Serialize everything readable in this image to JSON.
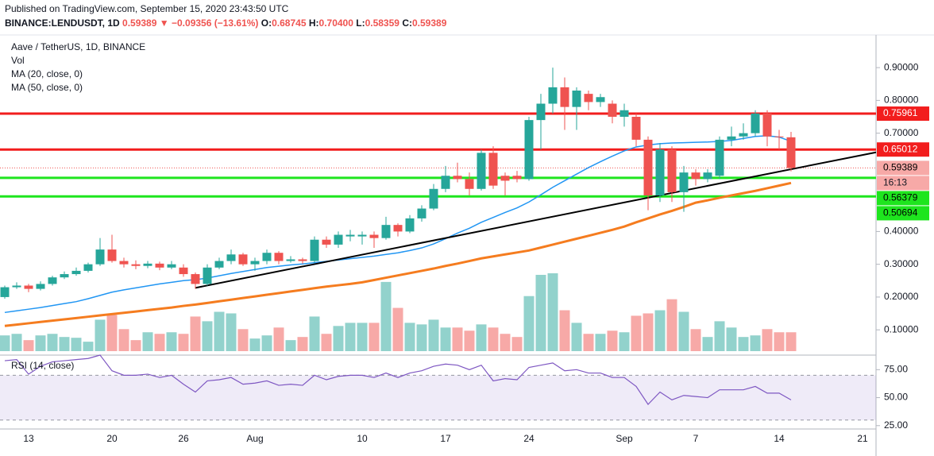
{
  "header": {
    "published": "Published on TradingView.com, September 15, 2020 23:43:50 UTC",
    "symbol": "BINANCE:LENDUSDT, 1D",
    "last": "0.59389",
    "arrow": "▼",
    "change": "−0.09356 (−13.61%)",
    "ohlc": [
      {
        "label": "O:",
        "value": "0.68745"
      },
      {
        "label": "H:",
        "value": "0.70400"
      },
      {
        "label": "L:",
        "value": "0.58359"
      },
      {
        "label": "C:",
        "value": "0.59389"
      }
    ]
  },
  "chart_data": {
    "type": "candlestick",
    "title": "Aave / TetherUS, 1D, BINANCE",
    "categories": [
      null,
      null,
      "13",
      null,
      null,
      null,
      null,
      null,
      null,
      "20",
      null,
      null,
      null,
      null,
      null,
      "26",
      null,
      null,
      null,
      null,
      null,
      "Aug",
      null,
      null,
      null,
      null,
      null,
      null,
      null,
      null,
      "10",
      null,
      null,
      null,
      null,
      null,
      null,
      "17",
      null,
      null,
      null,
      null,
      null,
      null,
      "24",
      null,
      null,
      null,
      null,
      null,
      null,
      null,
      "Sep",
      null,
      null,
      null,
      null,
      null,
      "7",
      null,
      null,
      null,
      null,
      null,
      null,
      "14",
      null,
      null,
      null,
      null,
      null,
      null,
      "21",
      null
    ],
    "open": [
      0.2,
      0.23,
      0.235,
      0.225,
      0.24,
      0.26,
      0.27,
      0.28,
      0.3,
      0.345,
      0.31,
      0.3,
      0.295,
      0.302,
      0.29,
      0.29,
      0.27,
      0.24,
      0.29,
      0.31,
      0.33,
      0.3,
      0.31,
      0.335,
      0.31,
      0.315,
      0.31,
      0.375,
      0.36,
      0.385,
      0.385,
      0.39,
      0.38,
      0.42,
      0.4,
      0.44,
      0.47,
      0.53,
      0.57,
      0.56,
      0.53,
      0.64,
      0.57,
      0.57,
      0.56,
      0.74,
      0.79,
      0.84,
      0.78,
      0.82,
      0.795,
      0.79,
      0.75,
      0.75,
      0.68,
      0.51,
      0.65,
      0.52,
      0.58,
      0.56,
      0.57,
      0.68,
      0.69,
      0.7,
      0.76,
      0.69,
      0.68745,
      null,
      null,
      null,
      null,
      null,
      null,
      null
    ],
    "high": [
      0.235,
      0.245,
      0.24,
      0.248,
      0.265,
      0.278,
      0.29,
      0.305,
      0.38,
      0.39,
      0.32,
      0.312,
      0.31,
      0.308,
      0.31,
      0.3,
      0.275,
      0.3,
      0.32,
      0.345,
      0.335,
      0.32,
      0.345,
      0.34,
      0.325,
      0.32,
      0.385,
      0.385,
      0.4,
      0.405,
      0.4,
      0.4,
      0.445,
      0.425,
      0.45,
      0.48,
      0.545,
      0.6,
      0.61,
      0.58,
      0.65,
      0.66,
      0.58,
      0.585,
      0.75,
      0.82,
      0.9,
      0.87,
      0.84,
      0.83,
      0.82,
      0.8,
      0.79,
      0.76,
      0.69,
      0.67,
      0.66,
      0.6,
      0.59,
      0.59,
      0.69,
      0.72,
      0.73,
      0.77,
      0.77,
      0.71,
      0.704,
      null,
      null,
      null,
      null,
      null,
      null,
      null
    ],
    "low": [
      0.195,
      0.225,
      0.215,
      0.22,
      0.235,
      0.255,
      0.265,
      0.275,
      0.295,
      0.305,
      0.29,
      0.285,
      0.288,
      0.282,
      0.285,
      0.262,
      0.225,
      0.235,
      0.285,
      0.3,
      0.295,
      0.28,
      0.3,
      0.3,
      0.305,
      0.302,
      0.305,
      0.35,
      0.35,
      0.37,
      0.36,
      0.35,
      0.375,
      0.385,
      0.395,
      0.43,
      0.465,
      0.52,
      0.55,
      0.51,
      0.525,
      0.53,
      0.51,
      0.55,
      0.555,
      0.65,
      0.76,
      0.71,
      0.71,
      0.77,
      0.78,
      0.73,
      0.72,
      0.66,
      0.465,
      0.49,
      0.49,
      0.46,
      0.54,
      0.55,
      0.56,
      0.66,
      0.68,
      0.69,
      0.66,
      0.65,
      0.58359,
      null,
      null,
      null,
      null,
      null,
      null,
      null
    ],
    "close": [
      0.23,
      0.235,
      0.225,
      0.24,
      0.26,
      0.27,
      0.28,
      0.3,
      0.345,
      0.31,
      0.3,
      0.295,
      0.302,
      0.29,
      0.3,
      0.27,
      0.24,
      0.29,
      0.31,
      0.33,
      0.3,
      0.31,
      0.335,
      0.31,
      0.315,
      0.31,
      0.375,
      0.36,
      0.39,
      0.39,
      0.39,
      0.38,
      0.42,
      0.4,
      0.44,
      0.47,
      0.53,
      0.57,
      0.56,
      0.53,
      0.64,
      0.54,
      0.555,
      0.56,
      0.74,
      0.79,
      0.84,
      0.78,
      0.83,
      0.795,
      0.81,
      0.75,
      0.77,
      0.68,
      0.51,
      0.65,
      0.52,
      0.58,
      0.56,
      0.58,
      0.68,
      0.69,
      0.7,
      0.76,
      0.69,
      0.688,
      0.59389,
      null,
      null,
      null,
      null,
      null,
      null,
      null
    ],
    "volume_label": "Vol",
    "volume": [
      20,
      22,
      14,
      20,
      22,
      18,
      17,
      12,
      40,
      46,
      28,
      14,
      24,
      22,
      24,
      22,
      44,
      38,
      50,
      48,
      28,
      16,
      20,
      30,
      14,
      18,
      44,
      22,
      32,
      36,
      36,
      36,
      88,
      55,
      36,
      34,
      40,
      30,
      30,
      26,
      34,
      30,
      22,
      18,
      70,
      97,
      99,
      52,
      36,
      22,
      22,
      26,
      24,
      45,
      48,
      52,
      66,
      50,
      28,
      18,
      38,
      30,
      18,
      20,
      28,
      24,
      24,
      null,
      null,
      null,
      null,
      null,
      null,
      null
    ],
    "series": [
      {
        "name": "MA (20, close, 0)",
        "color": "#2196f3",
        "values": [
          0.153,
          0.158,
          0.163,
          0.168,
          0.174,
          0.18,
          0.186,
          0.195,
          0.205,
          0.215,
          0.222,
          0.228,
          0.234,
          0.24,
          0.245,
          0.25,
          0.253,
          0.258,
          0.265,
          0.272,
          0.278,
          0.284,
          0.29,
          0.294,
          0.298,
          0.301,
          0.305,
          0.309,
          0.313,
          0.317,
          0.321,
          0.325,
          0.33,
          0.335,
          0.342,
          0.35,
          0.362,
          0.378,
          0.395,
          0.41,
          0.428,
          0.443,
          0.458,
          0.472,
          0.49,
          0.512,
          0.535,
          0.555,
          0.575,
          0.595,
          0.613,
          0.63,
          0.646,
          0.658,
          0.664,
          0.668,
          0.67,
          0.671,
          0.672,
          0.673,
          0.675,
          0.678,
          0.684,
          0.69,
          0.692,
          0.688,
          0.675,
          null,
          null,
          null,
          null,
          null,
          null,
          null
        ]
      },
      {
        "name": "MA (50, close, 0)",
        "color": "#f57c1f",
        "values": [
          0.112,
          0.116,
          0.12,
          0.124,
          0.128,
          0.132,
          0.136,
          0.14,
          0.144,
          0.148,
          0.152,
          0.156,
          0.16,
          0.164,
          0.168,
          0.173,
          0.177,
          0.182,
          0.187,
          0.192,
          0.197,
          0.202,
          0.207,
          0.212,
          0.217,
          0.222,
          0.227,
          0.232,
          0.236,
          0.24,
          0.245,
          0.252,
          0.259,
          0.266,
          0.273,
          0.28,
          0.287,
          0.295,
          0.302,
          0.31,
          0.318,
          0.324,
          0.33,
          0.336,
          0.342,
          0.351,
          0.36,
          0.369,
          0.378,
          0.387,
          0.396,
          0.405,
          0.415,
          0.428,
          0.44,
          0.452,
          0.463,
          0.475,
          0.488,
          0.495,
          0.503,
          0.51,
          0.517,
          0.524,
          0.532,
          0.54,
          0.548,
          null,
          null,
          null,
          null,
          null,
          null,
          null
        ]
      }
    ],
    "up_color": "#26a69a",
    "down_color": "#ef5350",
    "ylim": [
      0.035,
      0.973
    ],
    "yticks": [
      {
        "value": 0.1,
        "label": "0.10000"
      },
      {
        "value": 0.2,
        "label": "0.20000"
      },
      {
        "value": 0.3,
        "label": "0.30000"
      },
      {
        "value": 0.4,
        "label": "0.40000"
      },
      {
        "value": 0.7,
        "label": "0.70000"
      },
      {
        "value": 0.8,
        "label": "0.80000"
      },
      {
        "value": 0.9,
        "label": "0.90000"
      }
    ],
    "levels": [
      {
        "value": 0.75961,
        "label": "0.75961",
        "color": "#f21d1d"
      },
      {
        "value": 0.65012,
        "label": "0.65012",
        "color": "#f21d1d"
      },
      {
        "value": 0.56379,
        "label": "0.56379",
        "color": "#1ee51e"
      },
      {
        "value": 0.50694,
        "label": "0.50694",
        "color": "#1ee51e"
      }
    ],
    "last_price": {
      "value": 0.59389,
      "label": "0.59389",
      "countdown": "16:13"
    },
    "trendline": {
      "x": [
        16,
        66
      ],
      "y": [
        0.228,
        0.59
      ],
      "color": "#000000"
    },
    "rsi": {
      "name": "RSI (14, close)",
      "color": "#7e57c2",
      "values": [
        83,
        84,
        71,
        78,
        82,
        83,
        84,
        85,
        88,
        74,
        70,
        70,
        71,
        68,
        70,
        62,
        55,
        65,
        66,
        68,
        62,
        63,
        65,
        61,
        62,
        61,
        70,
        66,
        69,
        70,
        70,
        68,
        72,
        68,
        72,
        74,
        78,
        80,
        79,
        75,
        79,
        65,
        67,
        66,
        77,
        79,
        81,
        74,
        75,
        72,
        72,
        68,
        68,
        60,
        44,
        55,
        48,
        52,
        51,
        50,
        57,
        57,
        57,
        60,
        54,
        54,
        48,
        null,
        null,
        null,
        null,
        null,
        null,
        null
      ],
      "ylim": [
        22,
        88
      ],
      "yticks": [
        {
          "value": 25,
          "label": "25.00"
        },
        {
          "value": 50,
          "label": "50.00"
        },
        {
          "value": 75,
          "label": "75.00"
        }
      ],
      "bands": [
        30,
        70
      ]
    },
    "grid": false
  }
}
